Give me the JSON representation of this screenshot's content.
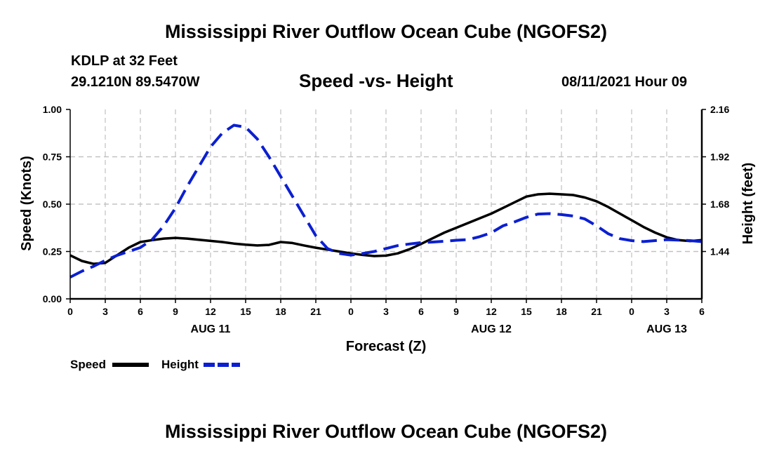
{
  "header": {
    "title": "Mississippi River Outflow Ocean Cube (NGOFS2)",
    "station": "KDLP at 32 Feet",
    "coords": "29.1210N  89.5470W",
    "subtitle": "Speed -vs- Height",
    "datetime": "08/11/2021 Hour 09"
  },
  "footer": {
    "title": "Mississippi River Outflow Ocean Cube (NGOFS2)"
  },
  "colors": {
    "speed": "#000000",
    "height": "#0b1fd1",
    "grid": "#c0c0c0"
  },
  "chart_data": {
    "type": "line",
    "title": "Speed -vs- Height",
    "xlabel": "Forecast (Z)",
    "ylabel": "Speed (Knots)",
    "y2label": "Height (feet)",
    "xlim": [
      0,
      54
    ],
    "ylim": [
      0,
      1
    ],
    "y2lim": [
      1.2,
      2.16
    ],
    "x_ticks": [
      0,
      3,
      6,
      9,
      12,
      15,
      18,
      21,
      24,
      27,
      30,
      33,
      36,
      39,
      42,
      45,
      48,
      51,
      54
    ],
    "x_tick_labels": [
      "0",
      "3",
      "6",
      "9",
      "12",
      "15",
      "18",
      "21",
      "0",
      "3",
      "6",
      "9",
      "12",
      "15",
      "18",
      "21",
      "0",
      "3",
      "6"
    ],
    "y_ticks": [
      "0.00",
      "0.25",
      "0.50",
      "0.75",
      "1.00"
    ],
    "y2_ticks": [
      "1.44",
      "1.68",
      "1.92",
      "2.16"
    ],
    "day_labels": [
      {
        "x": 12,
        "label": "AUG 11"
      },
      {
        "x": 36,
        "label": "AUG 12"
      },
      {
        "x": 51,
        "label": "AUG 13"
      }
    ],
    "grid": true,
    "legend": "bottom-left",
    "series": [
      {
        "name": "Speed",
        "style": "solid",
        "axis": "left",
        "x": [
          0,
          1,
          2,
          3,
          4,
          5,
          6,
          7,
          8,
          9,
          10,
          11,
          12,
          13,
          14,
          15,
          16,
          17,
          18,
          19,
          20,
          21,
          22,
          23,
          24,
          25,
          26,
          27,
          28,
          29,
          30,
          31,
          32,
          33,
          34,
          35,
          36,
          37,
          38,
          39,
          40,
          41,
          42,
          43,
          44,
          45,
          46,
          47,
          48,
          49,
          50,
          51,
          52,
          53,
          54
        ],
        "values": [
          0.23,
          0.2,
          0.185,
          0.19,
          0.23,
          0.27,
          0.3,
          0.31,
          0.318,
          0.322,
          0.318,
          0.312,
          0.306,
          0.3,
          0.292,
          0.286,
          0.282,
          0.285,
          0.3,
          0.295,
          0.282,
          0.27,
          0.26,
          0.25,
          0.24,
          0.232,
          0.226,
          0.228,
          0.24,
          0.262,
          0.29,
          0.32,
          0.35,
          0.375,
          0.4,
          0.425,
          0.45,
          0.48,
          0.51,
          0.54,
          0.552,
          0.555,
          0.552,
          0.548,
          0.535,
          0.515,
          0.485,
          0.45,
          0.415,
          0.38,
          0.35,
          0.325,
          0.31,
          0.305,
          0.31
        ]
      },
      {
        "name": "Height",
        "style": "dashed",
        "axis": "right",
        "x": [
          0,
          1,
          2,
          3,
          4,
          5,
          6,
          7,
          8,
          9,
          10,
          11,
          12,
          13,
          14,
          15,
          16,
          17,
          18,
          19,
          20,
          21,
          22,
          23,
          24,
          25,
          26,
          27,
          28,
          29,
          30,
          31,
          32,
          33,
          34,
          35,
          36,
          37,
          38,
          39,
          40,
          41,
          42,
          43,
          44,
          45,
          46,
          47,
          48,
          49,
          50,
          51,
          52,
          53,
          54
        ],
        "values": [
          1.31,
          1.34,
          1.365,
          1.395,
          1.42,
          1.44,
          1.46,
          1.5,
          1.57,
          1.66,
          1.77,
          1.87,
          1.97,
          2.04,
          2.08,
          2.07,
          2.01,
          1.92,
          1.82,
          1.72,
          1.62,
          1.52,
          1.455,
          1.43,
          1.422,
          1.43,
          1.44,
          1.455,
          1.47,
          1.478,
          1.485,
          1.488,
          1.492,
          1.497,
          1.5,
          1.515,
          1.535,
          1.57,
          1.59,
          1.613,
          1.63,
          1.632,
          1.627,
          1.62,
          1.605,
          1.57,
          1.53,
          1.505,
          1.495,
          1.49,
          1.495,
          1.5,
          1.498,
          1.495,
          1.49
        ]
      }
    ]
  }
}
